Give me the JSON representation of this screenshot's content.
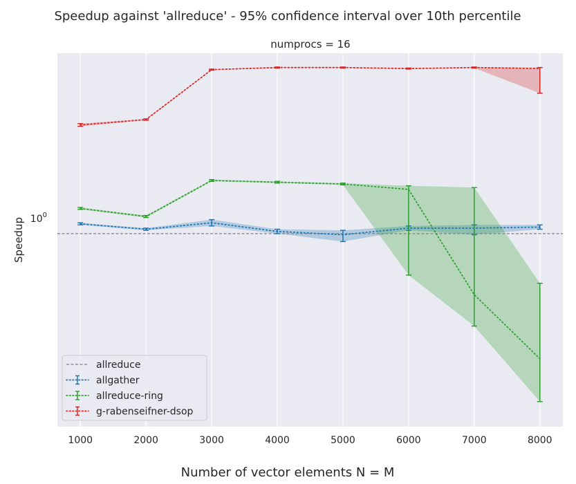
{
  "chart_data": {
    "type": "line",
    "title": "Speedup against 'allreduce' - 95% confidence interval over 10th percentile",
    "subtitle": "numprocs = 16",
    "xlabel": "Number of vector elements N = M",
    "ylabel": "Speedup",
    "yscale": "log",
    "ytick_label": "10^0",
    "ylim": [
      0.42,
      2.25
    ],
    "xlim": [
      650,
      8350
    ],
    "x": [
      1000,
      2000,
      3000,
      4000,
      5000,
      6000,
      7000,
      8000
    ],
    "grid": true,
    "legend_position": "lower-left",
    "baseline": {
      "name": "allreduce",
      "value": 1.0,
      "color": "#808080"
    },
    "series": [
      {
        "name": "allgather",
        "color": "#1f77b4",
        "values": [
          1.045,
          1.02,
          1.05,
          1.01,
          0.995,
          1.025,
          1.025,
          1.03
        ],
        "ci_low": [
          1.04,
          1.015,
          1.035,
          1.0,
          0.965,
          1.015,
          0.995,
          1.02
        ],
        "ci_high": [
          1.05,
          1.025,
          1.065,
          1.02,
          1.015,
          1.035,
          1.04,
          1.04
        ]
      },
      {
        "name": "allreduce-ring",
        "color": "#2ca02c",
        "values": [
          1.12,
          1.08,
          1.27,
          1.26,
          1.25,
          1.22,
          0.76,
          0.57
        ],
        "ci_low": [
          1.115,
          1.075,
          1.265,
          1.255,
          1.245,
          0.83,
          0.66,
          0.47
        ],
        "ci_high": [
          1.125,
          1.085,
          1.275,
          1.265,
          1.255,
          1.24,
          1.23,
          0.8
        ]
      },
      {
        "name": "g-rabenseifner-dsop",
        "color": "#d62728",
        "values": [
          1.63,
          1.67,
          2.09,
          2.11,
          2.11,
          2.1,
          2.11,
          2.1
        ],
        "ci_low": [
          1.62,
          1.665,
          2.085,
          2.105,
          2.105,
          2.095,
          2.105,
          1.88
        ],
        "ci_high": [
          1.64,
          1.675,
          2.095,
          2.115,
          2.115,
          2.105,
          2.115,
          2.11
        ]
      }
    ]
  }
}
